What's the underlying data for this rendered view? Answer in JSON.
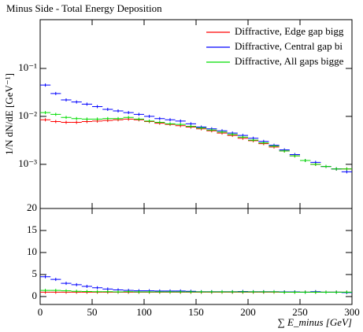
{
  "chart_data": [
    {
      "type": "scatter",
      "title": "Minus Side - Total Energy Deposition",
      "y_label": "1/N dN/dE [GeV⁻¹]",
      "log_y": true,
      "x": [
        5,
        15,
        25,
        35,
        45,
        55,
        65,
        75,
        85,
        95,
        105,
        115,
        125,
        135,
        145,
        155,
        165,
        175,
        185,
        195,
        205,
        215,
        225,
        235,
        245,
        255,
        265,
        275,
        285,
        295
      ],
      "xlim": [
        0,
        300
      ],
      "xticks": [
        0,
        50,
        100,
        150,
        200,
        250,
        300
      ],
      "ylim": [
        0.00012,
        1.04
      ],
      "yticks": [
        {
          "value": 0.001,
          "label": "10⁻³"
        },
        {
          "value": 0.01,
          "label": "10⁻²"
        },
        {
          "value": 0.1,
          "label": "10⁻¹"
        }
      ],
      "legend": "top-right",
      "series": [
        {
          "name": "Diffractive, Edge gap bigg",
          "color": "#ff0000",
          "values": [
            0.0085,
            0.0078,
            0.0075,
            0.0075,
            0.0078,
            0.008,
            0.0082,
            0.0085,
            0.0088,
            0.0085,
            0.0078,
            0.0072,
            0.0068,
            0.0064,
            0.006,
            0.0055,
            0.005,
            0.0045,
            0.004,
            0.0035,
            0.0031,
            0.0027,
            0.0023,
            0.0019,
            0.0015,
            0.0012,
            0.001,
            0.0009,
            0.0008,
            0.0008
          ]
        },
        {
          "name": "Diffractive, Central gap bi",
          "color": "#0000ff",
          "values": [
            0.045,
            0.03,
            0.022,
            0.02,
            0.018,
            0.016,
            0.014,
            0.013,
            0.012,
            0.011,
            0.01,
            0.009,
            0.0085,
            0.008,
            0.007,
            0.006,
            0.0055,
            0.005,
            0.0045,
            0.004,
            0.0035,
            0.003,
            0.0025,
            0.002,
            0.0016,
            0.0012,
            0.0011,
            0.0009,
            0.0008,
            0.0007
          ]
        },
        {
          "name": "Diffractive, All gaps bigge",
          "color": "#00dd00",
          "values": [
            0.012,
            0.011,
            0.0095,
            0.009,
            0.0088,
            0.0088,
            0.009,
            0.009,
            0.0095,
            0.0088,
            0.008,
            0.0075,
            0.007,
            0.0068,
            0.0062,
            0.0057,
            0.0052,
            0.0047,
            0.0042,
            0.0037,
            0.0032,
            0.0028,
            0.0024,
            0.0019,
            0.0015,
            0.0012,
            0.001,
            0.0009,
            0.0008,
            0.0008
          ]
        }
      ]
    },
    {
      "type": "scatter",
      "x_label": "∑ E_minus [GeV]",
      "x": [
        5,
        15,
        25,
        35,
        45,
        55,
        65,
        75,
        85,
        95,
        105,
        115,
        125,
        135,
        145,
        155,
        165,
        175,
        185,
        195,
        205,
        215,
        225,
        235,
        245,
        255,
        265,
        275,
        285,
        295
      ],
      "xlim": [
        0,
        300
      ],
      "xticks": [
        0,
        50,
        100,
        150,
        200,
        250,
        300
      ],
      "ylim": [
        -1.8,
        20
      ],
      "yticks": [
        0,
        5,
        10,
        15,
        20
      ],
      "series": [
        {
          "color": "#ff0000",
          "values": [
            1,
            1,
            1,
            1,
            1,
            1,
            1,
            1,
            1,
            1,
            1,
            1,
            1,
            1,
            1,
            1,
            1,
            1,
            1,
            1,
            1,
            1,
            1,
            1,
            1,
            1,
            1,
            1,
            1,
            1
          ]
        },
        {
          "color": "#0000ff",
          "values": [
            4.5,
            3.9,
            3.0,
            2.7,
            2.3,
            2.0,
            1.7,
            1.5,
            1.4,
            1.3,
            1.3,
            1.25,
            1.25,
            1.25,
            1.2,
            1.1,
            1.1,
            1.1,
            1.1,
            1.15,
            1.1,
            1.1,
            1.1,
            1.05,
            1.05,
            1.0,
            1.1,
            1.0,
            1.0,
            0.9
          ]
        },
        {
          "color": "#00dd00",
          "values": [
            1.4,
            1.4,
            1.3,
            1.2,
            1.15,
            1.1,
            1.1,
            1.05,
            1.1,
            1.05,
            1.05,
            1.05,
            1.05,
            1.05,
            1.05,
            1.05,
            1.05,
            1.05,
            1.05,
            1.05,
            1.05,
            1.05,
            1.05,
            1.0,
            1.0,
            1.0,
            1.0,
            1.0,
            1.0,
            1.0
          ]
        }
      ]
    }
  ]
}
